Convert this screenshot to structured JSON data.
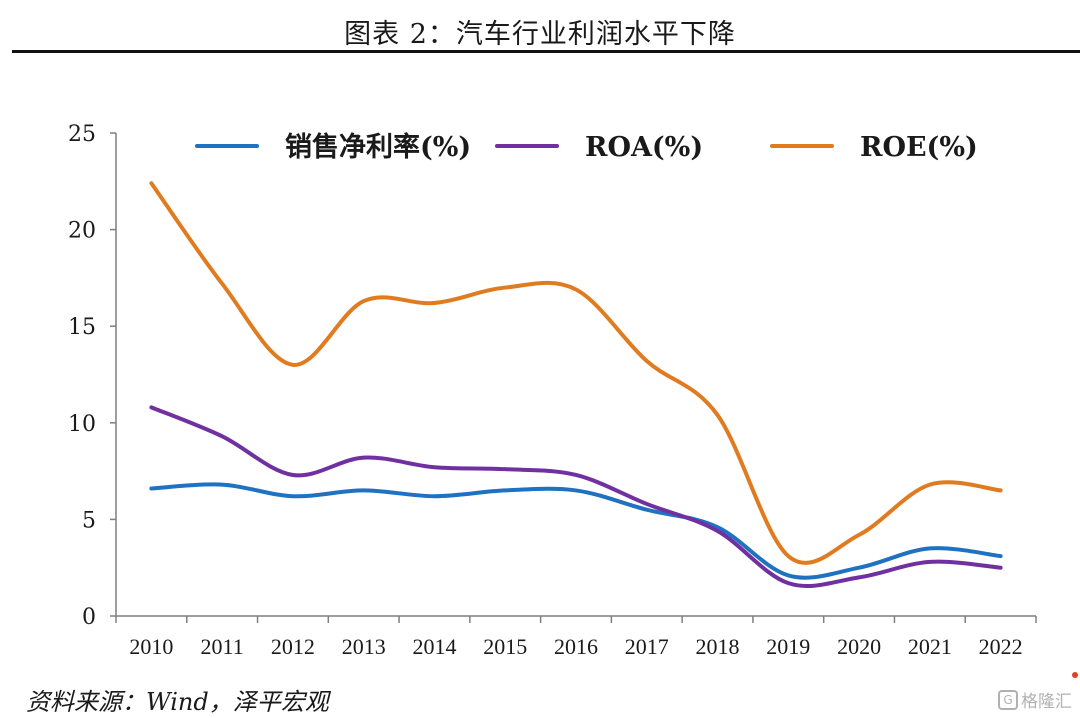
{
  "header": {
    "title": "图表 2：汽车行业利润水平下降"
  },
  "source": {
    "text": "资料来源：Wind，泽平宏观"
  },
  "watermark": {
    "icon": "gelonghui-logo-icon",
    "label": "格隆汇"
  },
  "chart_data": {
    "type": "line",
    "title": "图表 2：汽车行业利润水平下降",
    "xlabel": "",
    "ylabel": "",
    "ylim": [
      0,
      25
    ],
    "yticks": [
      "0",
      "5",
      "10",
      "15",
      "20",
      "25"
    ],
    "categories": [
      "2010",
      "2011",
      "2012",
      "2013",
      "2014",
      "2015",
      "2016",
      "2017",
      "2018",
      "2019",
      "2020",
      "2021",
      "2022"
    ],
    "legend_position": "top",
    "grid": false,
    "smooth": true,
    "series": [
      {
        "name": "销售净利率(%)",
        "color": "#1f72c1",
        "values": [
          6.6,
          6.8,
          6.2,
          6.5,
          6.2,
          6.5,
          6.5,
          5.5,
          4.6,
          2.1,
          2.5,
          3.5,
          3.1
        ]
      },
      {
        "name": "ROA(%)",
        "color": "#7030a0",
        "values": [
          10.8,
          9.3,
          7.3,
          8.2,
          7.7,
          7.6,
          7.3,
          5.8,
          4.4,
          1.7,
          2.0,
          2.8,
          2.5
        ]
      },
      {
        "name": "ROE(%)",
        "color": "#e07b20",
        "values": [
          22.4,
          17.2,
          13.0,
          16.3,
          16.2,
          17.0,
          16.9,
          13.2,
          10.4,
          3.1,
          4.2,
          6.8,
          6.5
        ]
      }
    ]
  }
}
